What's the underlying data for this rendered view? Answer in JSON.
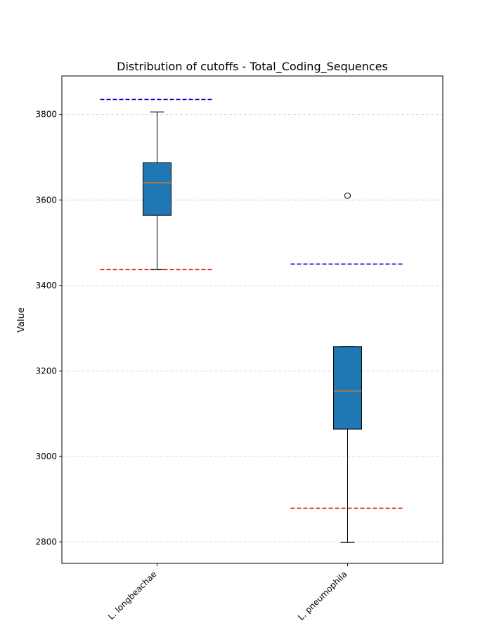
{
  "chart_data": {
    "type": "box",
    "title": "Distribution of cutoffs - Total_Coding_Sequences",
    "xlabel": "",
    "ylabel": "Value",
    "ylim": [
      2750,
      3890
    ],
    "yticks": [
      2800,
      3000,
      3200,
      3400,
      3600,
      3800
    ],
    "grid": "horizontal dashed",
    "categories": [
      "L. longbeachae",
      "L. pneumophila"
    ],
    "boxes": [
      {
        "category": "L. longbeachae",
        "whisker_low": 3437,
        "q1": 3564,
        "median": 3640,
        "q3": 3687,
        "whisker_high": 3806,
        "outliers": [],
        "upper_cutoff": 3835,
        "lower_cutoff": 3437
      },
      {
        "category": "L. pneumophila",
        "whisker_low": 2799,
        "q1": 3064,
        "median": 3153,
        "q3": 3257,
        "whisker_high": 3257,
        "outliers": [
          3610
        ],
        "upper_cutoff": 3450,
        "lower_cutoff": 2879
      }
    ],
    "colors": {
      "box_fill": "#1f77b4",
      "median": "#ff7f0e",
      "upper_cutoff": "#0000cc",
      "lower_cutoff": "#dd0000",
      "grid": "#cccccc"
    }
  }
}
